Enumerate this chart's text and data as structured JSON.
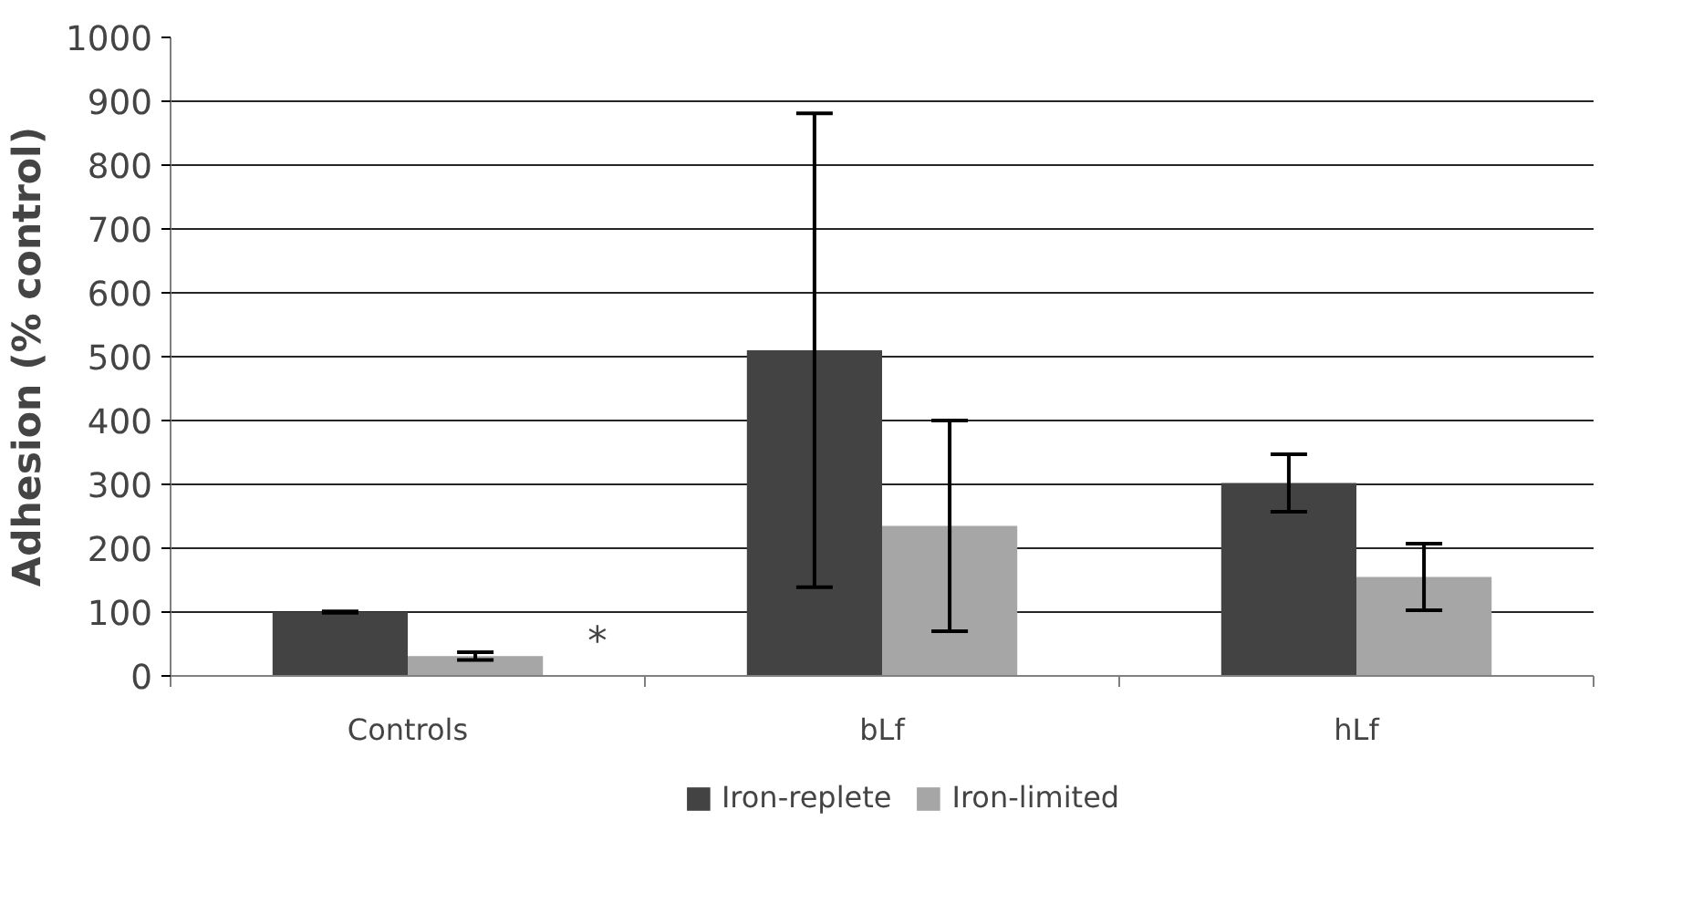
{
  "chart_data": {
    "type": "bar",
    "ylabel": "Adhesion (% control)",
    "categories": [
      "Controls",
      "bLf",
      "hLf"
    ],
    "series": [
      {
        "name": "Iron-replete",
        "color": "#434343",
        "values": [
          100,
          510,
          302
        ],
        "errors": [
          1,
          371,
          45
        ]
      },
      {
        "name": "Iron-limited",
        "color": "#a6a6a6",
        "values": [
          31,
          235,
          155
        ],
        "errors": [
          6,
          165,
          52
        ]
      }
    ],
    "ylim": [
      0,
      1000
    ],
    "yticks": [
      0,
      100,
      200,
      300,
      400,
      500,
      600,
      700,
      800,
      900,
      1000
    ],
    "grid": "y",
    "legend": "bottom",
    "annotations": [
      "*"
    ]
  }
}
